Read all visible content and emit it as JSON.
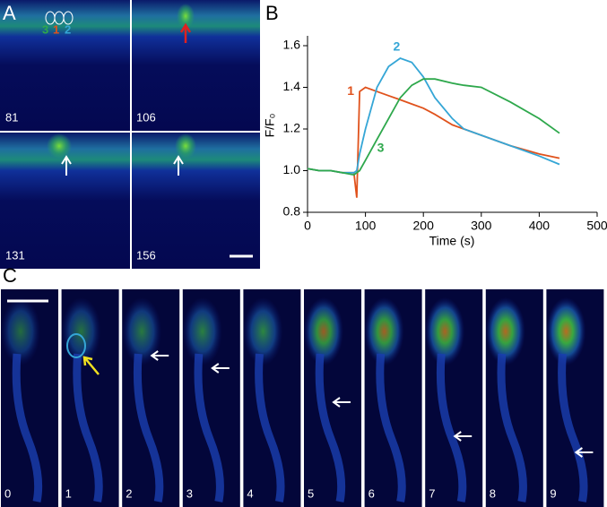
{
  "panels": {
    "a": {
      "label": "A",
      "frames": [
        "81",
        "106",
        "131",
        "156"
      ],
      "roi_labels": [
        "3",
        "1",
        "2"
      ]
    },
    "b": {
      "label": "B"
    },
    "c": {
      "label": "C",
      "frames": [
        "0",
        "1",
        "2",
        "3",
        "4",
        "5",
        "6",
        "7",
        "8",
        "9"
      ]
    }
  },
  "chart_data": {
    "type": "line",
    "xlabel": "Time (s)",
    "ylabel": "F/F₀",
    "x": [
      0,
      20,
      40,
      60,
      80,
      85,
      90,
      100,
      120,
      140,
      160,
      180,
      200,
      220,
      250,
      270,
      300,
      350,
      400,
      435
    ],
    "series": [
      {
        "name": "1",
        "color": "#e0521c",
        "values": [
          1.01,
          1.0,
          1.0,
          0.99,
          0.99,
          0.87,
          1.38,
          1.4,
          1.38,
          1.36,
          1.34,
          1.32,
          1.3,
          1.27,
          1.22,
          1.2,
          1.17,
          1.12,
          1.08,
          1.06
        ]
      },
      {
        "name": "2",
        "color": "#35a6d6",
        "values": [
          1.01,
          1.0,
          1.0,
          0.99,
          0.99,
          1.0,
          1.08,
          1.2,
          1.4,
          1.5,
          1.54,
          1.52,
          1.45,
          1.35,
          1.25,
          1.2,
          1.17,
          1.12,
          1.07,
          1.03
        ]
      },
      {
        "name": "3",
        "color": "#2ea84c",
        "values": [
          1.01,
          1.0,
          1.0,
          0.99,
          0.98,
          0.99,
          1.0,
          1.05,
          1.15,
          1.25,
          1.35,
          1.41,
          1.44,
          1.44,
          1.42,
          1.41,
          1.4,
          1.33,
          1.25,
          1.18
        ]
      }
    ],
    "xlim": [
      0,
      500
    ],
    "xticks": [
      0,
      100,
      200,
      300,
      400,
      500
    ],
    "ylim": [
      0.8,
      1.6
    ],
    "yticks": [
      0.8,
      {
        "value": 1.0,
        "label": "1.0"
      },
      1.2,
      1.4,
      1.6
    ]
  }
}
